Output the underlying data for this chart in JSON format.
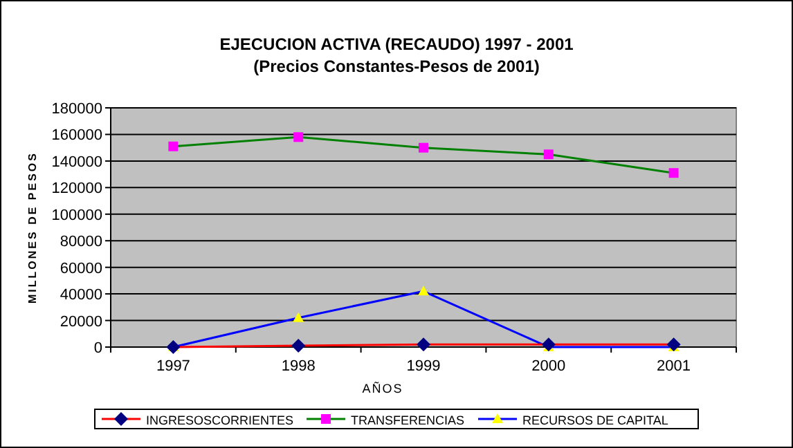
{
  "chart_data": {
    "type": "line",
    "title": "EJECUCION ACTIVA (RECAUDO) 1997 - 2001",
    "subtitle": "(Precios Constantes-Pesos de 2001)",
    "xlabel": "AÑOS",
    "ylabel": "MILLONES DE PESOS",
    "categories": [
      "1997",
      "1998",
      "1999",
      "2000",
      "2001"
    ],
    "ylim": [
      0,
      180000
    ],
    "yticks": [
      0,
      20000,
      40000,
      60000,
      80000,
      100000,
      120000,
      140000,
      160000,
      180000
    ],
    "grid": "y",
    "legend": "bottom",
    "series": [
      {
        "name": "INGRESOSCORRIENTES",
        "color": "#ff0000",
        "colors": [
          "#000080",
          "#000080",
          "#000080",
          "#000080",
          "#000080"
        ],
        "marker": "diamond",
        "values": [
          0,
          1000,
          2000,
          2000,
          2000
        ]
      },
      {
        "name": "TRANSFERENCIAS",
        "color": "#008000",
        "colors": [
          "#ff00ff",
          "#ff00ff",
          "#ff00ff",
          "#ff00ff",
          "#ff00ff"
        ],
        "marker": "square",
        "values": [
          151000,
          158000,
          150000,
          145000,
          131000
        ]
      },
      {
        "name": "RECURSOS DE CAPITAL",
        "color": "#0000ff",
        "colors": [
          "#ffff00",
          "#ffff00",
          "#ffff00",
          "#ffff00",
          "#ffff00"
        ],
        "marker": "triangle",
        "values": [
          0,
          22000,
          42000,
          0,
          0
        ]
      }
    ]
  }
}
